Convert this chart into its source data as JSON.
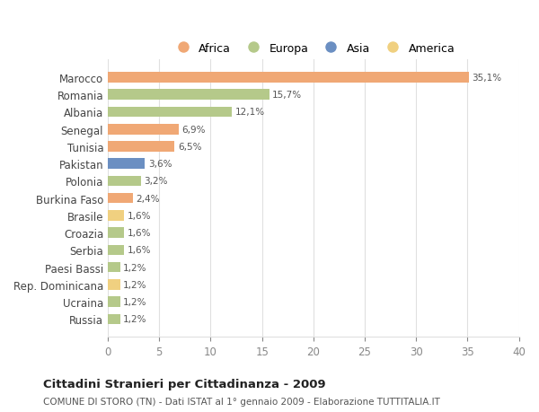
{
  "countries": [
    "Marocco",
    "Romania",
    "Albania",
    "Senegal",
    "Tunisia",
    "Pakistan",
    "Polonia",
    "Burkina Faso",
    "Brasile",
    "Croazia",
    "Serbia",
    "Paesi Bassi",
    "Rep. Dominicana",
    "Ucraina",
    "Russia"
  ],
  "values": [
    35.1,
    15.7,
    12.1,
    6.9,
    6.5,
    3.6,
    3.2,
    2.4,
    1.6,
    1.6,
    1.6,
    1.2,
    1.2,
    1.2,
    1.2
  ],
  "labels": [
    "35,1%",
    "15,7%",
    "12,1%",
    "6,9%",
    "6,5%",
    "3,6%",
    "3,2%",
    "2,4%",
    "1,6%",
    "1,6%",
    "1,6%",
    "1,2%",
    "1,2%",
    "1,2%",
    "1,2%"
  ],
  "continents": [
    "Africa",
    "Europa",
    "Europa",
    "Africa",
    "Africa",
    "Asia",
    "Europa",
    "Africa",
    "America",
    "Europa",
    "Europa",
    "Europa",
    "America",
    "Europa",
    "Europa"
  ],
  "colors": {
    "Africa": "#F0A875",
    "Europa": "#B5C98A",
    "Asia": "#6B8FC2",
    "America": "#F0D080"
  },
  "legend_order": [
    "Africa",
    "Europa",
    "Asia",
    "America"
  ],
  "legend_colors": [
    "#F0A875",
    "#B5C98A",
    "#6B8FC2",
    "#F0D080"
  ],
  "xlim": [
    0,
    40
  ],
  "xticks": [
    0,
    5,
    10,
    15,
    20,
    25,
    30,
    35,
    40
  ],
  "title": "Cittadini Stranieri per Cittadinanza - 2009",
  "subtitle": "COMUNE DI STORO (TN) - Dati ISTAT al 1° gennaio 2009 - Elaborazione TUTTITALIA.IT",
  "background_color": "#ffffff",
  "grid_color": "#e0e0e0",
  "bar_height": 0.6
}
